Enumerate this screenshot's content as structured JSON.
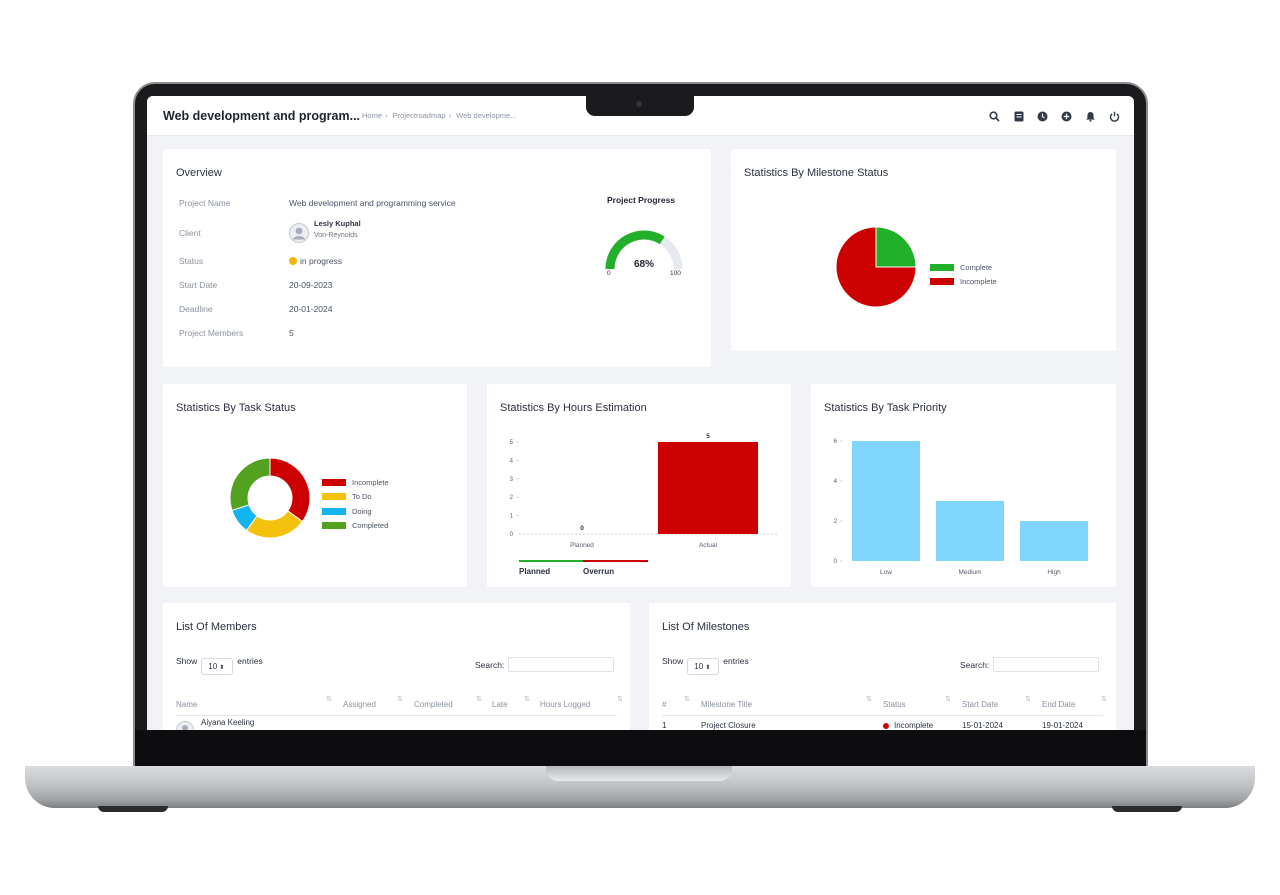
{
  "header": {
    "title": "Web development and program...",
    "breadcrumb": [
      "Home",
      "Projectroadmap",
      "Web developme..."
    ],
    "icons": [
      "search-icon",
      "notes-icon",
      "clock-icon",
      "add-icon",
      "bell-icon",
      "power-icon"
    ]
  },
  "overview": {
    "title": "Overview",
    "rows": [
      {
        "label": "Project Name",
        "value": "Web development and programming service"
      },
      {
        "label": "Client",
        "client_name": "Lesly Kuphal",
        "client_company": "Von-Reynolds"
      },
      {
        "label": "Status",
        "value": "in progress",
        "status_color": "#f5b400"
      },
      {
        "label": "Start Date",
        "value": "20-09-2023"
      },
      {
        "label": "Deadline",
        "value": "20-01-2024"
      },
      {
        "label": "Project Members",
        "value": "5"
      }
    ],
    "progress": {
      "title": "Project Progress",
      "value_label": "68%",
      "value": 68,
      "min_label": "0",
      "max_label": "100",
      "color": "#22b02a"
    }
  },
  "milestone_status": {
    "title": "Statistics By Milestone Status",
    "legend": [
      "Complete",
      "Incomplete"
    ]
  },
  "task_status": {
    "title": "Statistics By Task Status",
    "legend": [
      "Incomplete",
      "To Do",
      "Doing",
      "Completed"
    ]
  },
  "hours": {
    "title": "Statistics By Hours Estimation",
    "legend": [
      "Planned",
      "Overrun"
    ],
    "ticks": [
      "0",
      "1",
      "2",
      "3",
      "4",
      "5"
    ],
    "bar_labels": [
      "0",
      "5"
    ]
  },
  "priority": {
    "title": "Statistics By Task Priority",
    "ticks": [
      "0",
      "2",
      "4",
      "6"
    ]
  },
  "members": {
    "title": "List Of Members",
    "show": "Show",
    "entries_value": "10",
    "entries": "entries",
    "search": "Search:",
    "columns": [
      "Name",
      "Assigned",
      "Completed",
      "Late",
      "Hours Logged"
    ],
    "rows": [
      {
        "name": "Aiyana Keeling"
      }
    ]
  },
  "milestones": {
    "title": "List Of Milestones",
    "show": "Show",
    "entries_value": "10",
    "entries": "entries",
    "search": "Search:",
    "columns": [
      "#",
      "Milestone Title",
      "Status",
      "Start Date",
      "End Date"
    ],
    "rows": [
      {
        "num": "1",
        "title": "Project Closure",
        "status": "Incomplete",
        "start": "15-01-2024",
        "end": "19-01-2024"
      }
    ]
  },
  "colors": {
    "green": "#22b02a",
    "red": "#cc0000",
    "yellow": "#f4c20d",
    "blue": "#14b4f0",
    "olive": "#52a11f",
    "light_blue": "#7fd5fb"
  },
  "chart_data": [
    {
      "type": "pie",
      "title": "Statistics By Milestone Status",
      "categories": [
        "Complete",
        "Incomplete"
      ],
      "values": [
        1,
        3
      ]
    },
    {
      "type": "pie",
      "title": "Statistics By Task Status",
      "categories": [
        "Incomplete",
        "To Do",
        "Doing",
        "Completed"
      ],
      "values": [
        35,
        25,
        10,
        30
      ]
    },
    {
      "type": "bar",
      "title": "Statistics By Hours Estimation",
      "categories": [
        "Planned",
        "Actual"
      ],
      "values": [
        0,
        5
      ],
      "ylim": [
        0,
        5
      ]
    },
    {
      "type": "bar",
      "title": "Statistics By Task Priority",
      "categories": [
        "Low",
        "Medium",
        "High"
      ],
      "values": [
        6,
        3,
        2
      ],
      "ylim": [
        0,
        6
      ]
    }
  ]
}
